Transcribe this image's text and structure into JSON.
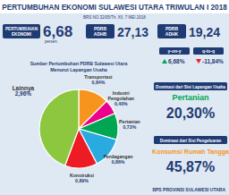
{
  "header": {
    "title": "PERTUMBUHAN EKONOMI SULAWESI UTARA TRIWULAN I 2018",
    "subtitle": "BRS NO.32/05/Th. XII, 7 MEI 2018"
  },
  "indicators": [
    {
      "label": "PERTUMBUHAN EKONOMI",
      "value": "6,68",
      "unit": "persen"
    },
    {
      "label": "PDRB ADHB",
      "value": "27,13"
    },
    {
      "label": "PDRB ADHK",
      "value": "19,24"
    }
  ],
  "growth": [
    {
      "label": "y-on-y",
      "value": "6,68%",
      "direction": "up"
    },
    {
      "label": "q-to-q",
      "value": "-11,84%",
      "direction": "down"
    }
  ],
  "chart_data": {
    "type": "pie",
    "title": "Sumber Pertumbuhan PDRB Sulawesi Utara Menurut Lapangan Usaha",
    "categories": [
      "Transportasi",
      "Industri Pengolahan",
      "Pertanian",
      "Perdagangan",
      "Konstruksi",
      "Lainnya"
    ],
    "values": [
      0.84,
      0.4,
      0.73,
      0.86,
      0.89,
      2.96
    ],
    "value_labels": [
      "0,84%",
      "0,40%",
      "0,73%",
      "0,86%",
      "0,89%",
      "2,96%"
    ],
    "colors": [
      "#f7941d",
      "#ec008c",
      "#00a651",
      "#29abe2",
      "#ed1c24",
      "#8dc63f"
    ],
    "data_labels": true
  },
  "dominance": [
    {
      "title": "Dominasi dari Sisi Lapangan Usaha",
      "label": "Pertanian",
      "value": "20,30%"
    },
    {
      "title": "Dominasi dari Sisi Pengeluaran",
      "label": "Konsumsi Rumah Tangga",
      "value": "45,87%"
    }
  ],
  "footer": "BPS PROVINSI SULAWESI UTARA"
}
